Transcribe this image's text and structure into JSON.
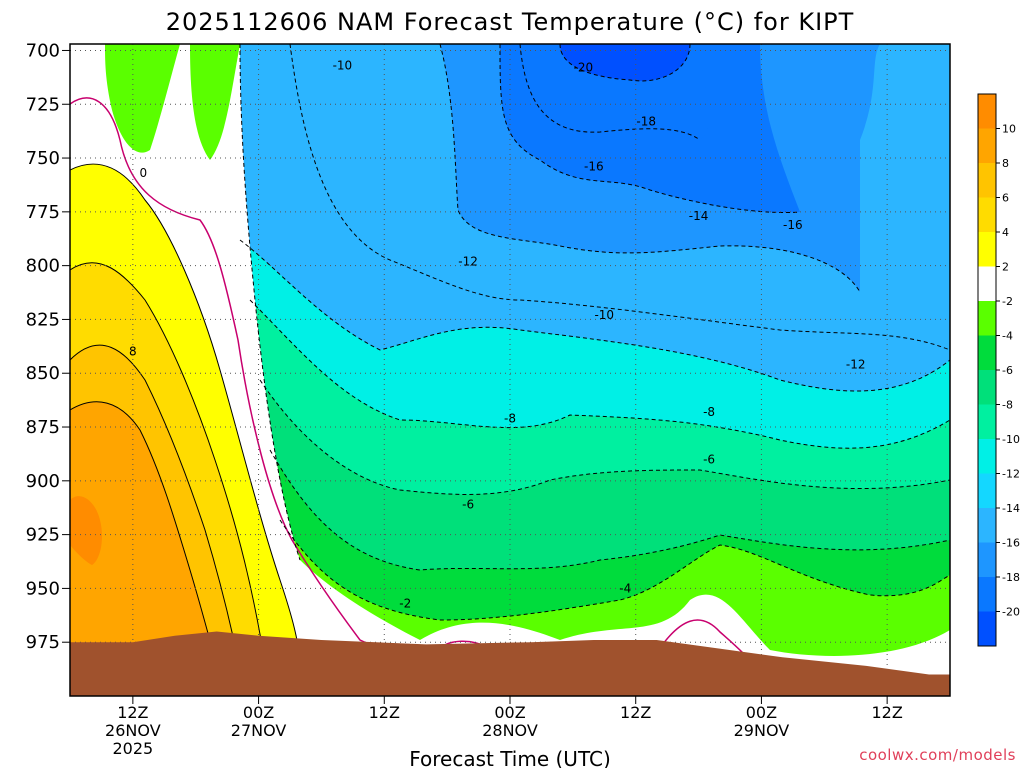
{
  "chart_data": {
    "type": "heatmap",
    "title": "2025112606 NAM Forecast Temperature (°C) for KIPT",
    "xlabel": "Forecast Time (UTC)",
    "ylabel": "",
    "y_axis_values": [
      700,
      725,
      750,
      775,
      800,
      825,
      850,
      875,
      900,
      925,
      950,
      975
    ],
    "y_range": [
      697,
      1000
    ],
    "y_direction": "pressure increases downward",
    "x_ticks": [
      {
        "hour": 12,
        "line1": "12Z",
        "line2": "26NOV",
        "line3": "2025"
      },
      {
        "hour": 24,
        "line1": "00Z",
        "line2": "27NOV",
        "line3": ""
      },
      {
        "hour": 36,
        "line1": "12Z",
        "line2": "",
        "line3": ""
      },
      {
        "hour": 48,
        "line1": "00Z",
        "line2": "28NOV",
        "line3": ""
      },
      {
        "hour": 60,
        "line1": "12Z",
        "line2": "",
        "line3": ""
      },
      {
        "hour": 72,
        "line1": "00Z",
        "line2": "29NOV",
        "line3": ""
      },
      {
        "hour": 84,
        "line1": "12Z",
        "line2": "",
        "line3": ""
      }
    ],
    "x_range_hours": [
      6,
      90
    ],
    "grid": "dotted",
    "colorbar": {
      "levels": [
        -22,
        -20,
        -18,
        -16,
        -14,
        -12,
        -10,
        -8,
        -6,
        -4,
        -2,
        2,
        4,
        6,
        8,
        10,
        12
      ],
      "labels": [
        "-20",
        "-18",
        "-16",
        "-14",
        "-12",
        "-10",
        "-8",
        "-6",
        "-4",
        "-2",
        "2",
        "4",
        "6",
        "8",
        "10"
      ],
      "colors": [
        "#0050ff",
        "#0a78ff",
        "#1e96ff",
        "#2cb5ff",
        "#14d7ff",
        "#00f0e6",
        "#00f0a0",
        "#00e07a",
        "#00dc3c",
        "#5aff00",
        "#ffffff",
        "#ffff00",
        "#ffdc00",
        "#ffc400",
        "#ffa500",
        "#ff8c00"
      ]
    },
    "contour_labels": [
      {
        "text": "-20",
        "hour": 55,
        "pressure": 708
      },
      {
        "text": "-18",
        "hour": 61,
        "pressure": 733
      },
      {
        "text": "-16",
        "hour": 56,
        "pressure": 754
      },
      {
        "text": "-16",
        "hour": 75,
        "pressure": 781
      },
      {
        "text": "-14",
        "hour": 66,
        "pressure": 777
      },
      {
        "text": "-12",
        "hour": 44,
        "pressure": 798
      },
      {
        "text": "-12",
        "hour": 81,
        "pressure": 846
      },
      {
        "text": "-10",
        "hour": 32,
        "pressure": 707
      },
      {
        "text": "-10",
        "hour": 57,
        "pressure": 823
      },
      {
        "text": "-8",
        "hour": 48,
        "pressure": 871
      },
      {
        "text": "-8",
        "hour": 67,
        "pressure": 868
      },
      {
        "text": "-6",
        "hour": 44,
        "pressure": 911
      },
      {
        "text": "-6",
        "hour": 67,
        "pressure": 890
      },
      {
        "text": "-4",
        "hour": 59,
        "pressure": 950
      },
      {
        "text": "-2",
        "hour": 38,
        "pressure": 957
      },
      {
        "text": "0",
        "hour": 13,
        "pressure": 757
      },
      {
        "text": "8",
        "hour": 12,
        "pressure": 840
      }
    ],
    "freezing_level_color": "#c8006e",
    "terrain_color": "#a0522d",
    "terrain_surface_pressure": [
      {
        "hour": 6,
        "pressure": 975
      },
      {
        "hour": 12,
        "pressure": 975
      },
      {
        "hour": 16,
        "pressure": 972
      },
      {
        "hour": 20,
        "pressure": 970
      },
      {
        "hour": 24,
        "pressure": 972
      },
      {
        "hour": 30,
        "pressure": 974
      },
      {
        "hour": 40,
        "pressure": 976
      },
      {
        "hour": 50,
        "pressure": 975
      },
      {
        "hour": 56,
        "pressure": 974
      },
      {
        "hour": 62,
        "pressure": 974
      },
      {
        "hour": 68,
        "pressure": 978
      },
      {
        "hour": 74,
        "pressure": 982
      },
      {
        "hour": 82,
        "pressure": 986
      },
      {
        "hour": 88,
        "pressure": 990
      },
      {
        "hour": 90,
        "pressure": 990
      }
    ]
  },
  "credit": "coolwx.com/models"
}
